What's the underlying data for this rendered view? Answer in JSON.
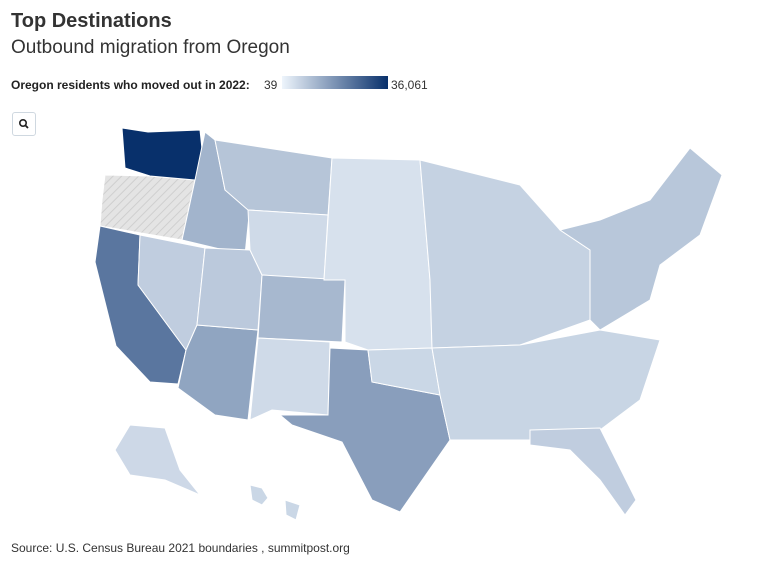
{
  "header": {
    "title": "Top Destinations",
    "subtitle": "Outbound migration from Oregon"
  },
  "legend": {
    "label": "Oregon residents who moved out in 2022:",
    "min": 39,
    "max": {
      "value": 36061,
      "label": "36,061"
    },
    "colors": [
      "#eef5fc",
      "#08306b"
    ]
  },
  "map": {
    "regions": [
      {
        "value": 36061
      },
      {
        "value": 15000
      },
      {
        "value": 4000
      },
      {
        "value": 1500
      },
      {
        "value": 6000
      },
      {
        "value": 1800
      },
      {
        "value": 2200
      },
      {
        "value": 700
      },
      {
        "value": 3500
      },
      {
        "value": 700
      },
      {
        "value": 7000
      },
      {
        "value": 400
      },
      {
        "value": 1200
      },
      {
        "value": 900
      },
      {
        "value": 1000
      },
      {
        "value": 1500
      },
      {
        "value": 2000
      },
      {
        "value": 800
      },
      {
        "value": 900
      }
    ]
  },
  "footer": {
    "source": "Source: U.S. Census Bureau 2021 boundaries , summitpost.org"
  }
}
